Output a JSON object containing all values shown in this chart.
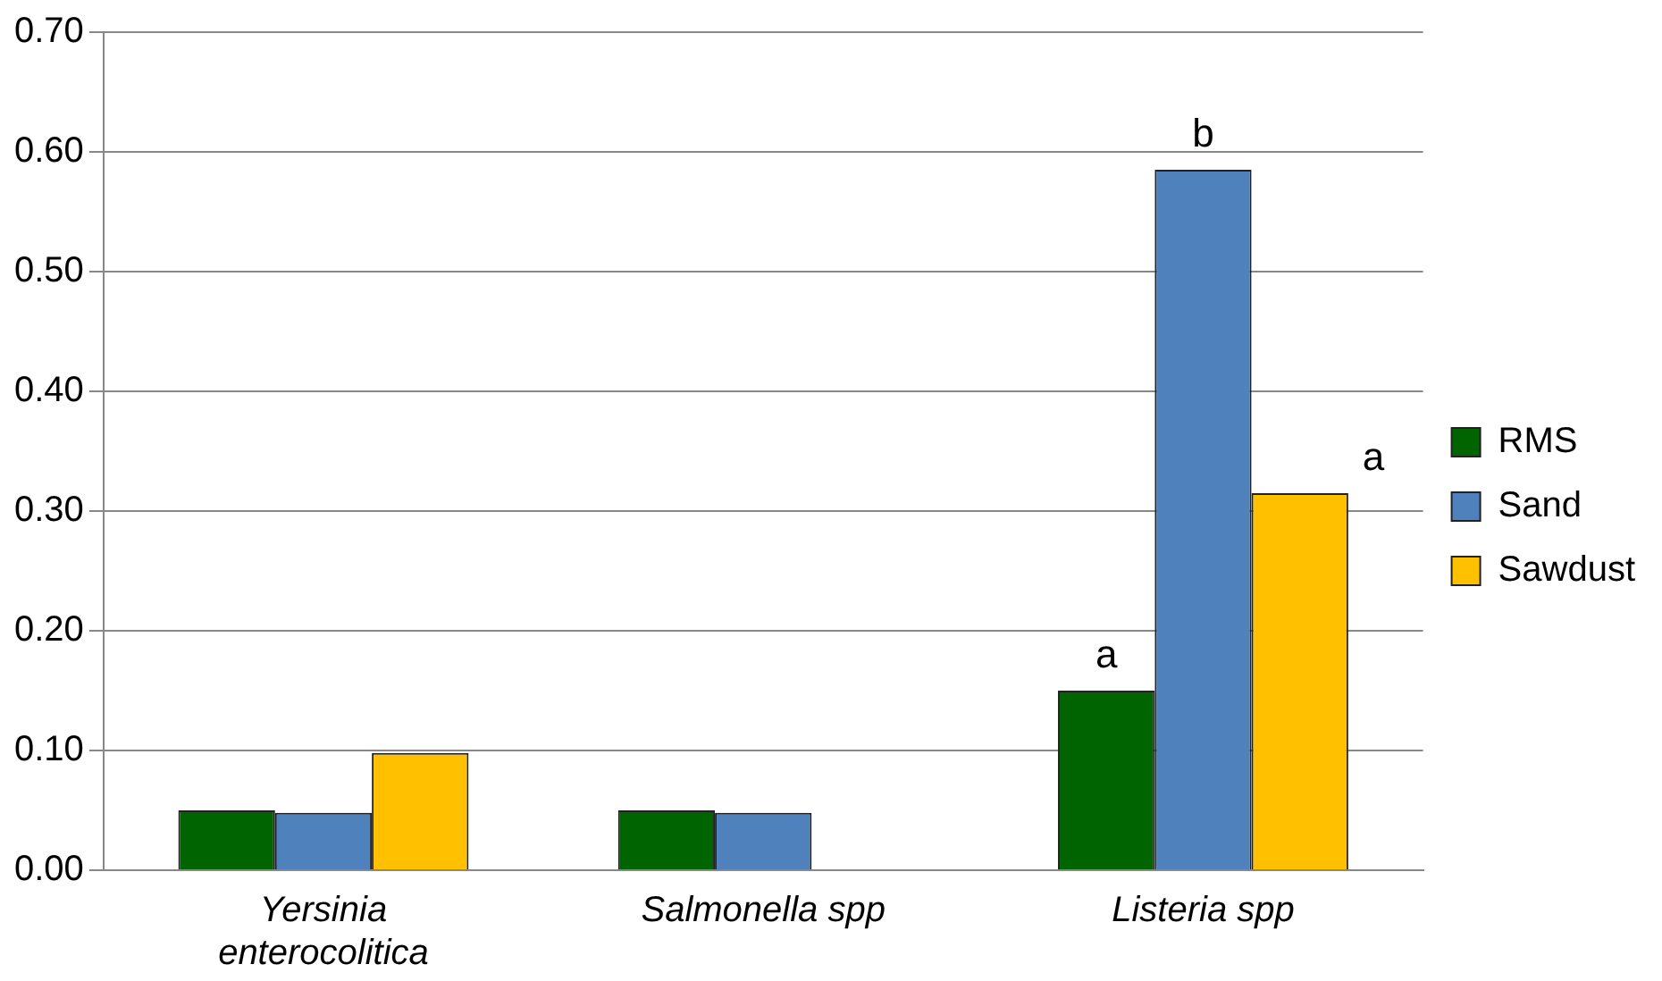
{
  "chart_data": {
    "type": "bar",
    "categories": [
      "Yersinia enterocolitica",
      "Salmonella spp",
      "Listeria spp"
    ],
    "series": [
      {
        "name": "RMS",
        "color": "#006400",
        "values": [
          0.05,
          0.05,
          0.15
        ]
      },
      {
        "name": "Sand",
        "color": "#4f81bd",
        "values": [
          0.048,
          0.048,
          0.585
        ]
      },
      {
        "name": "Sawdust",
        "color": "#ffc000",
        "values": [
          0.098,
          0,
          0.315
        ]
      }
    ],
    "ylim": [
      0,
      0.7
    ],
    "yticks": [
      {
        "value": 0,
        "label": "0.00"
      },
      {
        "value": 0.1,
        "label": "0.10"
      },
      {
        "value": 0.2,
        "label": "0.20"
      },
      {
        "value": 0.3,
        "label": "0.30"
      },
      {
        "value": 0.4,
        "label": "0.40"
      },
      {
        "value": 0.5,
        "label": "0.50"
      },
      {
        "value": 0.6,
        "label": "0.60"
      },
      {
        "value": 0.7,
        "label": "0.70"
      }
    ],
    "grid": "y",
    "legend": "right",
    "annotations": [
      "a",
      "b",
      "a"
    ]
  }
}
